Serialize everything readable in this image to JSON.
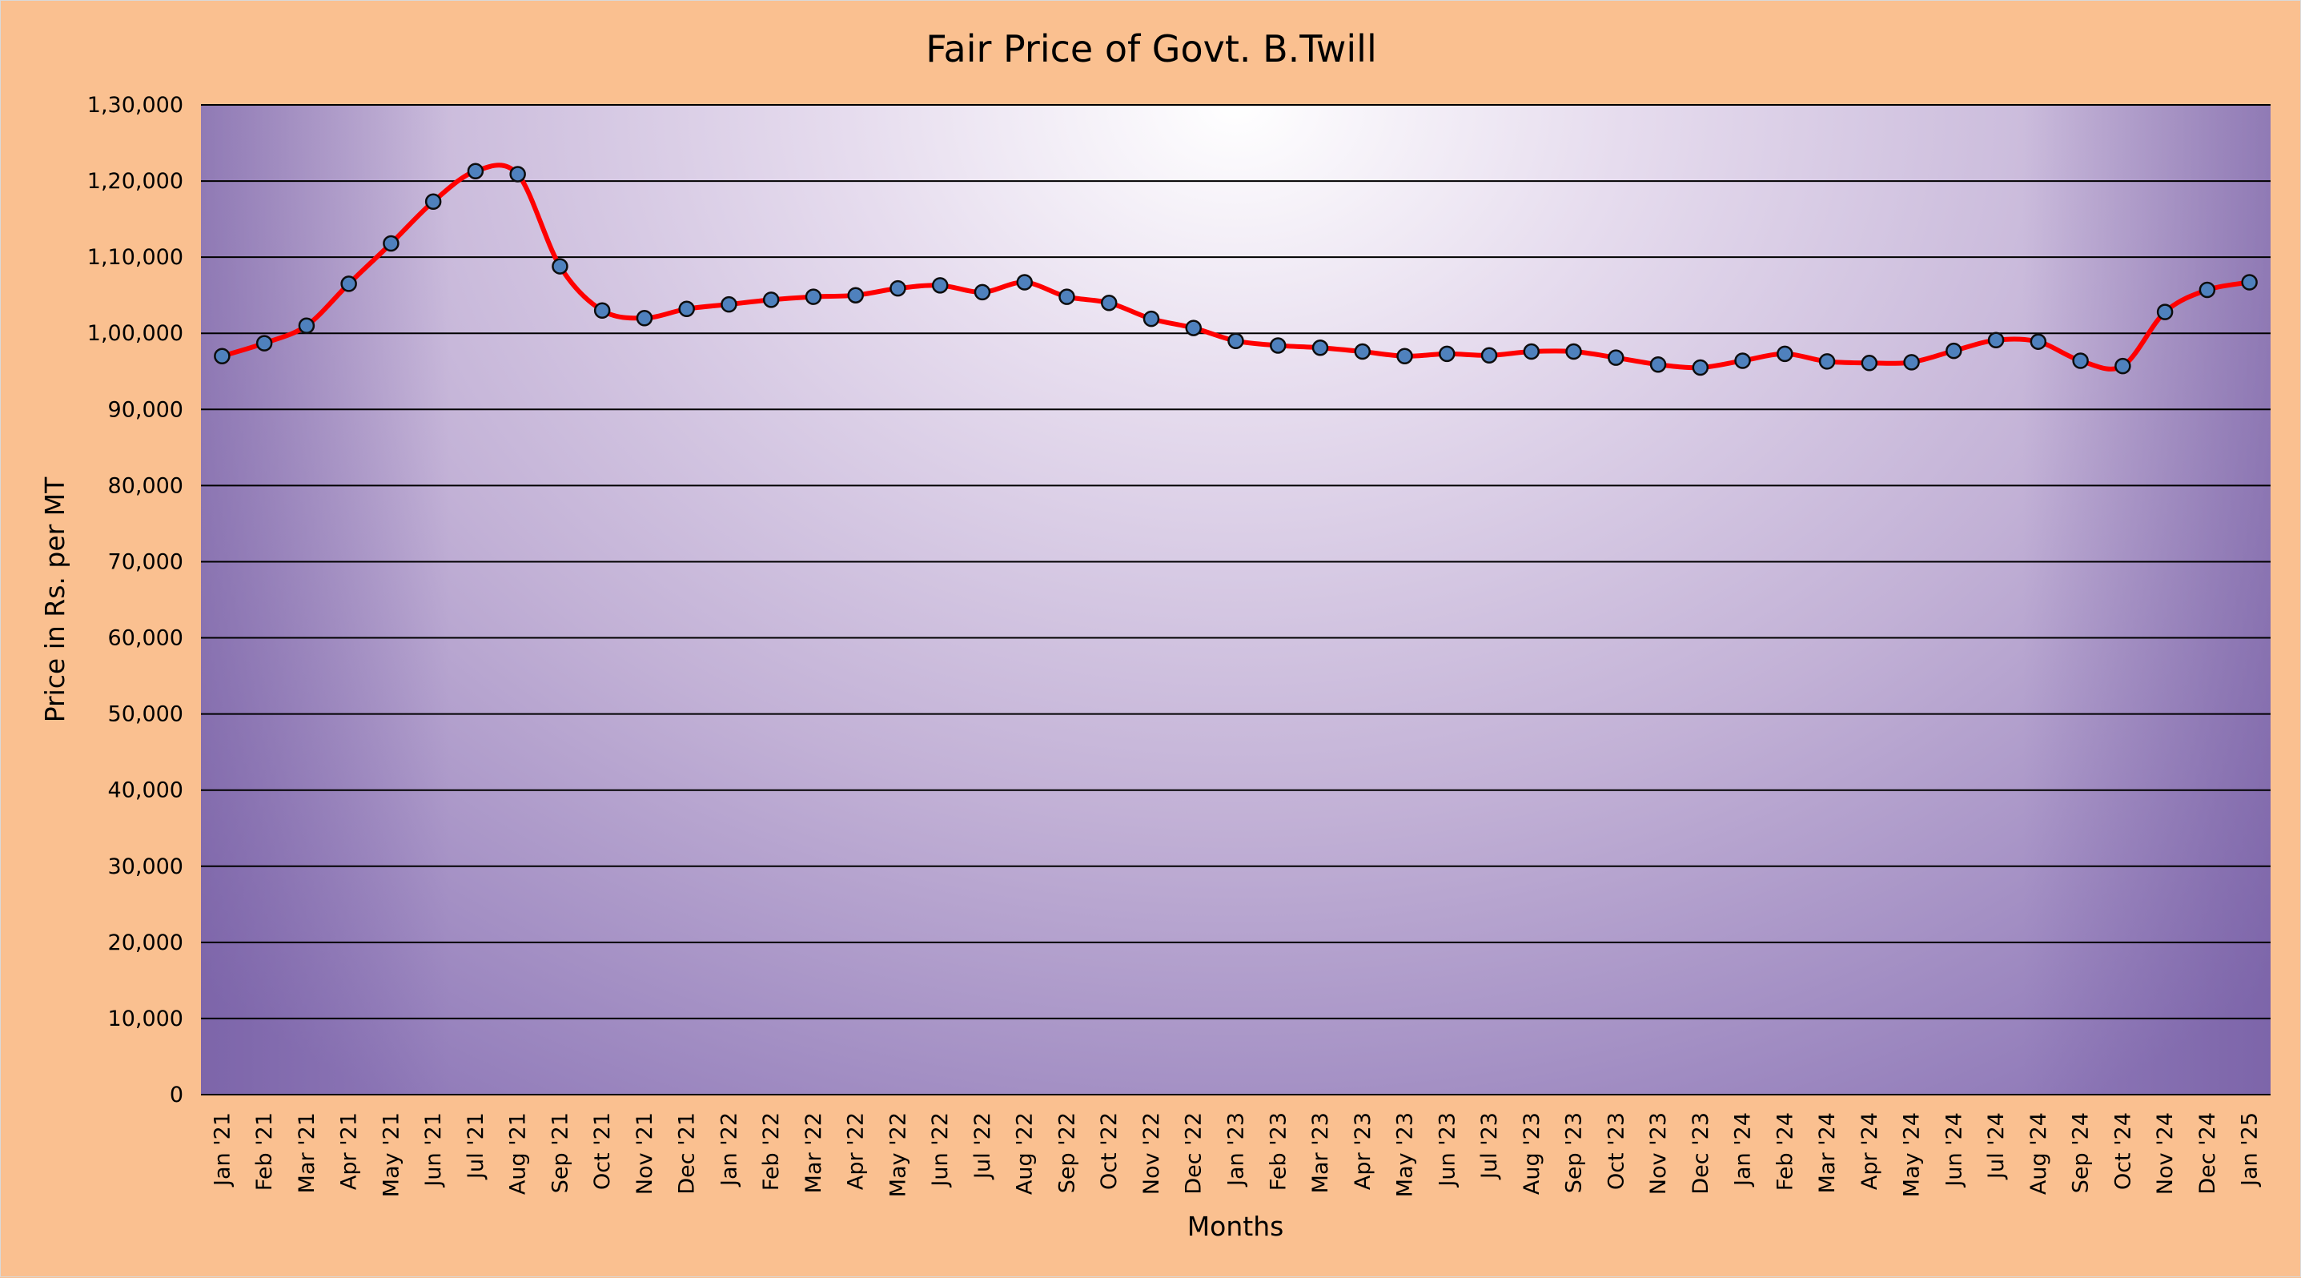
{
  "chart_data": {
    "type": "line",
    "title": "Fair Price of Govt. B.Twill",
    "xlabel": "Months",
    "ylabel": "Price in Rs. per MT",
    "ylim": [
      0,
      130000
    ],
    "yticks": [
      0,
      10000,
      20000,
      30000,
      40000,
      50000,
      60000,
      70000,
      80000,
      90000,
      100000,
      110000,
      120000,
      130000
    ],
    "ytick_labels": [
      "0",
      "10,000",
      "20,000",
      "30,000",
      "40,000",
      "50,000",
      "60,000",
      "70,000",
      "80,000",
      "90,000",
      "1,00,000",
      "1,10,000",
      "1,20,000",
      "1,30,000"
    ],
    "grid": true,
    "legend": "none",
    "categories": [
      "Jan '21",
      "Feb '21",
      "Mar '21",
      "Apr '21",
      "May '21",
      "Jun '21",
      "Jul '21",
      "Aug '21",
      "Sep '21",
      "Oct '21",
      "Nov '21",
      "Dec '21",
      "Jan '22",
      "Feb '22",
      "Mar '22",
      "Apr '22",
      "May '22",
      "Jun '22",
      "Jul '22",
      "Aug '22",
      "Sep '22",
      "Oct '22",
      "Nov '22",
      "Dec '22",
      "Jan '23",
      "Feb '23",
      "Mar '23",
      "Apr '23",
      "May '23",
      "Jun '23",
      "Jul '23",
      "Aug '23",
      "Sep '23",
      "Oct '23",
      "Nov '23",
      "Dec '23",
      "Jan '24",
      "Feb '24",
      "Mar '24",
      "Apr '24",
      "May '24",
      "Jun '24",
      "Jul '24",
      "Aug '24",
      "Sep '24",
      "Oct '24",
      "Nov '24",
      "Dec '24",
      "Jan '25"
    ],
    "series": [
      {
        "values": [
          97000,
          98700,
          101000,
          106500,
          111800,
          117300,
          121300,
          120900,
          108800,
          103000,
          102000,
          103200,
          103800,
          104400,
          104800,
          105000,
          105900,
          106300,
          105400,
          106700,
          104800,
          104000,
          101900,
          100700,
          99000,
          98400,
          98100,
          97600,
          97000,
          97300,
          97100,
          97600,
          97600,
          96800,
          95900,
          95500,
          96400,
          97300,
          96300,
          96100,
          96200,
          97700,
          99100,
          98900,
          96400,
          95700,
          102800,
          105700,
          106700
        ],
        "color": "#FF0000",
        "marker_color": "#4F81BD"
      }
    ],
    "plot_background": "purple radial gradient, light center",
    "chart_background": "#FAC090"
  }
}
